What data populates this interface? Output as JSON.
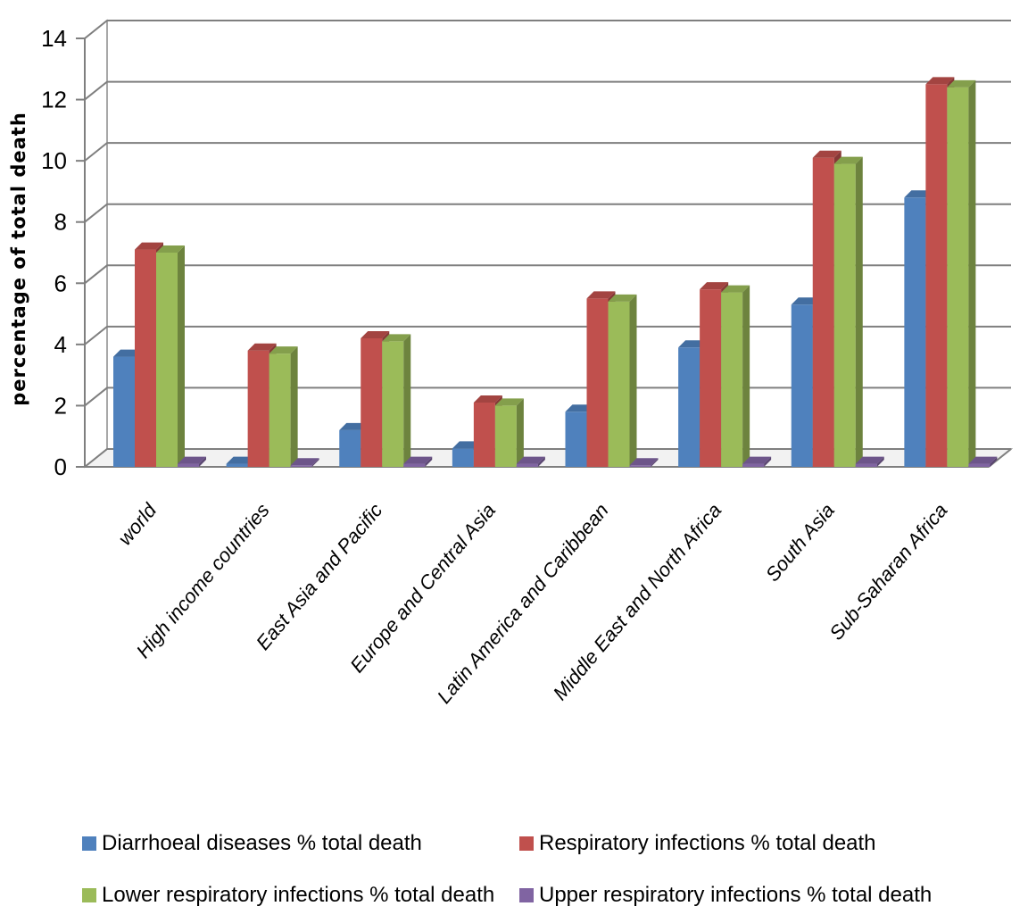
{
  "chart_data": {
    "type": "bar",
    "style": "3d-clustered-column",
    "categories": [
      "world",
      "High income countries",
      "East Asia and Pacific",
      "Europe and Central Asia",
      "Latin America and Caribbean",
      "Middle East and North Africa",
      "South Asia",
      "Sub-Saharan Africa"
    ],
    "series": [
      {
        "name": "Diarrhoeal diseases % total death",
        "color": "#4F81BD",
        "values": [
          3.6,
          0.1,
          1.2,
          0.6,
          1.8,
          3.9,
          5.3,
          8.8
        ]
      },
      {
        "name": "Respiratory infections % total death",
        "color": "#C0504D",
        "values": [
          7.1,
          3.8,
          4.2,
          2.1,
          5.5,
          5.8,
          10.1,
          12.5
        ]
      },
      {
        "name": "Lower respiratory infections % total death",
        "color": "#9BBB59",
        "values": [
          7.0,
          3.7,
          4.1,
          2.0,
          5.4,
          5.7,
          9.9,
          12.4
        ]
      },
      {
        "name": "Upper respiratory infections % total death",
        "color": "#8064A2",
        "values": [
          0.1,
          0.0,
          0.1,
          0.1,
          0.0,
          0.1,
          0.1,
          0.1
        ]
      }
    ],
    "title": "",
    "xlabel": "",
    "ylabel": "percentage of total death",
    "ylim": [
      0,
      14
    ],
    "yticks": [
      0,
      2,
      4,
      6,
      8,
      10,
      12,
      14
    ],
    "grid": true,
    "legend": "bottom"
  }
}
